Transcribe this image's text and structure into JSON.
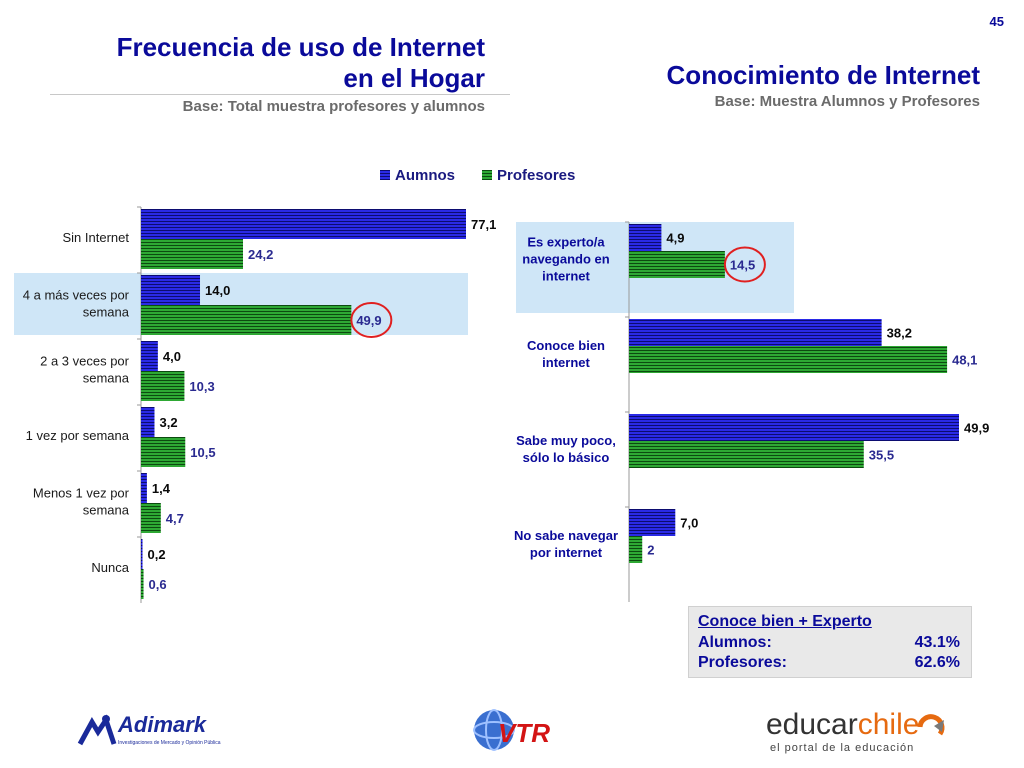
{
  "page_number": "45",
  "left_title_line1": "Frecuencia de uso de Internet",
  "left_title_line2": "en el Hogar",
  "left_subtitle": "Base: Total muestra profesores y alumnos",
  "right_title": "Conocimiento de Internet",
  "right_subtitle": "Base: Muestra Alumnos y Profesores",
  "legend": {
    "series1": "Aumnos",
    "series2": "Profesores"
  },
  "colors": {
    "series1": "#2a2ae6",
    "series2": "#1f8f24",
    "highlight": "#cfe6f7",
    "title": "#0a0a9a",
    "circle": "#e02020"
  },
  "chart_data": [
    {
      "type": "bar",
      "orientation": "horizontal",
      "categories": [
        "Sin Internet",
        "4 a más veces por semana",
        "2 a 3 veces por semana",
        "1 vez por semana",
        "Menos 1 vez por semana",
        "Nunca"
      ],
      "series": [
        {
          "name": "Aumnos",
          "values": [
            77.1,
            14.0,
            4.0,
            3.2,
            1.4,
            0.2
          ],
          "labels": [
            "77,1",
            "14,0",
            "4,0",
            "3,2",
            "1,4",
            "0,2"
          ]
        },
        {
          "name": "Profesores",
          "values": [
            24.2,
            49.9,
            10.3,
            10.5,
            4.7,
            0.6
          ],
          "labels": [
            "24,2",
            "49,9",
            "10,3",
            "10,5",
            "4,7",
            "0,6"
          ]
        }
      ],
      "highlighted_category": "4 a más veces por semana",
      "circled_value": "49,9",
      "xlim": [
        0,
        77.1
      ]
    },
    {
      "type": "bar",
      "orientation": "horizontal",
      "categories": [
        "Es experto/a navegando en internet",
        "Conoce bien internet",
        "Sabe muy poco, sólo lo básico",
        "No sabe navegar por internet"
      ],
      "series": [
        {
          "name": "Aumnos",
          "values": [
            4.9,
            38.2,
            49.9,
            7.0
          ],
          "labels": [
            "4,9",
            "38,2",
            "49,9",
            "7,0"
          ]
        },
        {
          "name": "Profesores",
          "values": [
            14.5,
            48.1,
            35.5,
            2
          ],
          "labels": [
            "14,5",
            "48,1",
            "35,5",
            "2"
          ]
        }
      ],
      "highlighted_category": "Es experto/a navegando en internet",
      "circled_value": "14,5",
      "xlim": [
        0,
        49.9
      ]
    }
  ],
  "summary": {
    "title": "Conoce bien + Experto",
    "rows": [
      {
        "label": "Alumnos:",
        "value": "43.1%"
      },
      {
        "label": "Profesores:",
        "value": "62.6%"
      }
    ]
  },
  "logos": {
    "adimark": "Adimark",
    "adimark_tagline": "Investigaciones de Mercado y Opinión Pública",
    "vtr": "VTR",
    "educarchile_1": "educar",
    "educarchile_2": "chile",
    "educarchile_tagline": "el portal de la educación"
  }
}
